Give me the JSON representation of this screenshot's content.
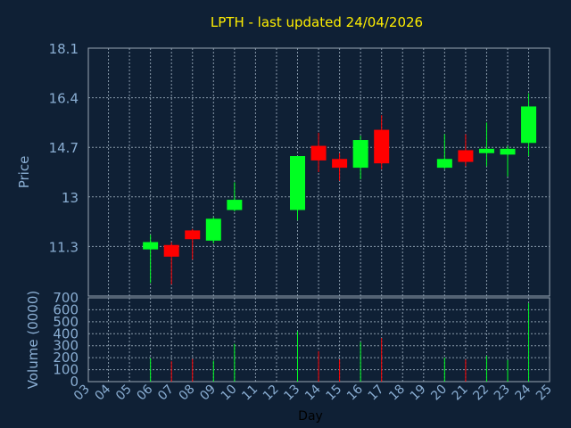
{
  "chart_data": {
    "type": "candlestick",
    "title": "LPTH - last updated 24/04/2026",
    "xlabel": "Day",
    "ylabel_price": "Price",
    "ylabel_volume": "Volume (0000)",
    "x_tick_labels": [
      "03",
      "04",
      "05",
      "06",
      "07",
      "08",
      "09",
      "10",
      "11",
      "12",
      "13",
      "14",
      "15",
      "16",
      "17",
      "18",
      "19",
      "20",
      "21",
      "22",
      "23",
      "24",
      "25"
    ],
    "price_ticks": [
      "11.3",
      "13",
      "14.7",
      "16.4",
      "18.1"
    ],
    "price_ylim": [
      9.6,
      18.1
    ],
    "volume_ticks": [
      "0",
      "100",
      "200",
      "300",
      "400",
      "500",
      "600",
      "700"
    ],
    "volume_ylim": [
      0,
      700
    ],
    "candles": [
      {
        "day": "06",
        "open": 11.2,
        "high": 11.7,
        "low": 10.05,
        "close": 11.45
      },
      {
        "day": "07",
        "open": 11.35,
        "high": 11.45,
        "low": 10.0,
        "close": 10.95
      },
      {
        "day": "08",
        "open": 11.85,
        "high": 11.9,
        "low": 10.85,
        "close": 11.55
      },
      {
        "day": "09",
        "open": 11.5,
        "high": 12.3,
        "low": 11.4,
        "close": 12.25
      },
      {
        "day": "10",
        "open": 12.55,
        "high": 13.5,
        "low": 12.5,
        "close": 12.9
      },
      {
        "day": "13",
        "open": 12.55,
        "high": 14.4,
        "low": 12.2,
        "close": 14.4
      },
      {
        "day": "14",
        "open": 14.75,
        "high": 15.2,
        "low": 13.85,
        "close": 14.25
      },
      {
        "day": "15",
        "open": 14.3,
        "high": 14.5,
        "low": 13.55,
        "close": 14.0
      },
      {
        "day": "16",
        "open": 14.0,
        "high": 15.1,
        "low": 13.6,
        "close": 14.95
      },
      {
        "day": "17",
        "open": 15.3,
        "high": 15.8,
        "low": 13.95,
        "close": 14.15
      },
      {
        "day": "20",
        "open": 14.0,
        "high": 15.15,
        "low": 13.95,
        "close": 14.3
      },
      {
        "day": "21",
        "open": 14.6,
        "high": 15.15,
        "low": 14.05,
        "close": 14.2
      },
      {
        "day": "22",
        "open": 14.5,
        "high": 15.55,
        "low": 14.05,
        "close": 14.65
      },
      {
        "day": "23",
        "open": 14.45,
        "high": 14.75,
        "low": 13.7,
        "close": 14.65
      },
      {
        "day": "24",
        "open": 14.85,
        "high": 16.55,
        "low": 14.4,
        "close": 16.1
      }
    ],
    "volumes": [
      {
        "day": "06",
        "value": 195,
        "up": true
      },
      {
        "day": "07",
        "value": 170,
        "up": false
      },
      {
        "day": "08",
        "value": 190,
        "up": false
      },
      {
        "day": "09",
        "value": 175,
        "up": true
      },
      {
        "day": "10",
        "value": 315,
        "up": true
      },
      {
        "day": "13",
        "value": 420,
        "up": true
      },
      {
        "day": "14",
        "value": 255,
        "up": false
      },
      {
        "day": "15",
        "value": 185,
        "up": false
      },
      {
        "day": "16",
        "value": 330,
        "up": true
      },
      {
        "day": "17",
        "value": 365,
        "up": false
      },
      {
        "day": "20",
        "value": 200,
        "up": true
      },
      {
        "day": "21",
        "value": 185,
        "up": false
      },
      {
        "day": "22",
        "value": 215,
        "up": true
      },
      {
        "day": "23",
        "value": 180,
        "up": true
      },
      {
        "day": "24",
        "value": 655,
        "up": true
      }
    ],
    "grid": true,
    "colors": {
      "background": "#0f2035",
      "up": "#00ff22",
      "down": "#ff0000",
      "title": "#ffee00",
      "axis_text": "#8aaed3",
      "xlabel_text": "#000000",
      "grid": "#8899aa",
      "frame": "#9aa6b4"
    }
  }
}
